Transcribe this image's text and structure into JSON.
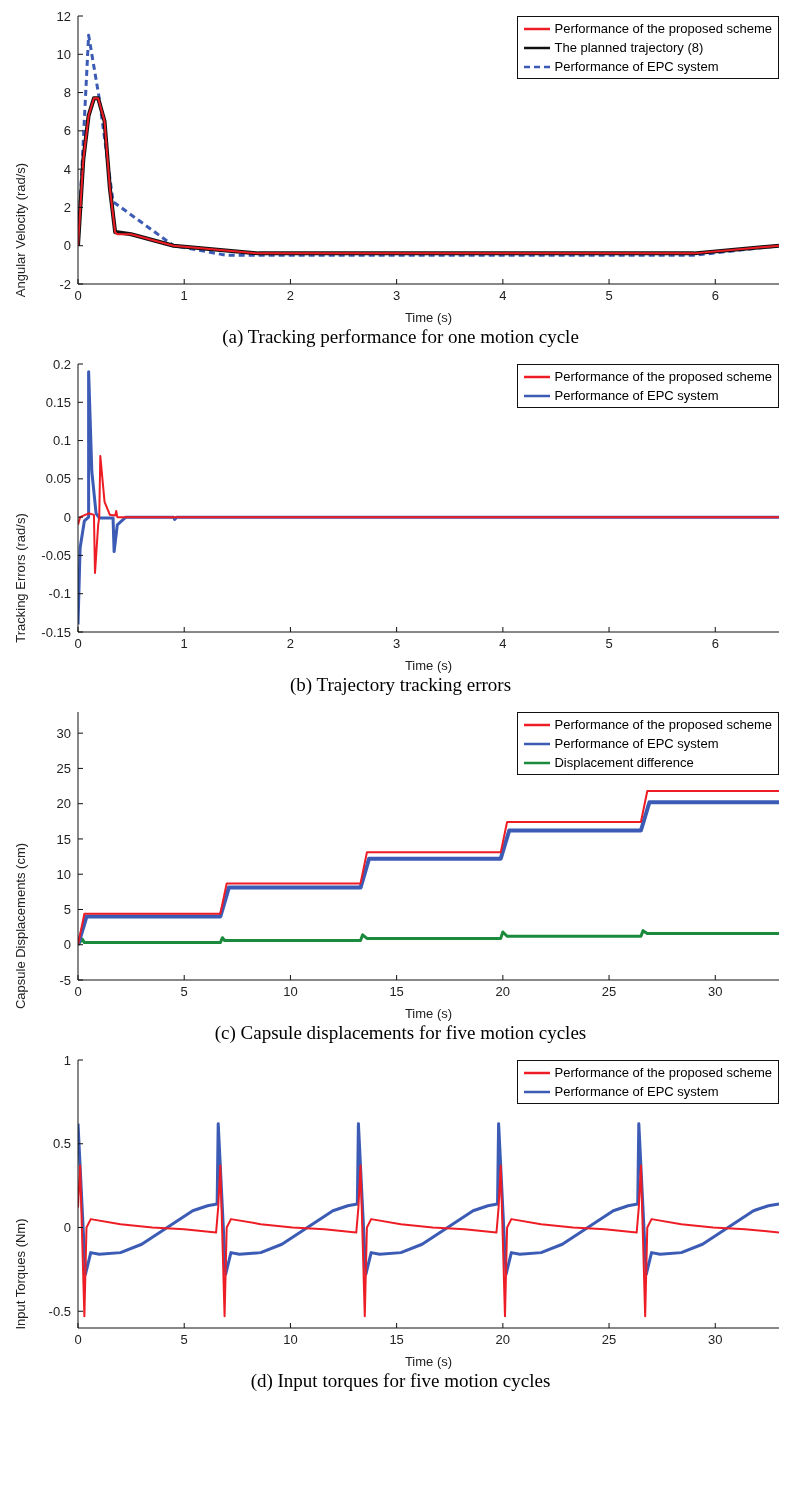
{
  "chart_data": [
    {
      "type": "line",
      "title": "(a) Tracking performance for one motion cycle",
      "xlabel": "Time (s)",
      "ylabel": "Angular Velocity (rad/s)",
      "xlim": [
        0,
        6.6
      ],
      "xticks": [
        0,
        1,
        2,
        3,
        4,
        5,
        6
      ],
      "ylim": [
        -2,
        12
      ],
      "yticks": [
        -2,
        0,
        2,
        4,
        6,
        8,
        10,
        12
      ],
      "grid": false,
      "legend": "top right",
      "series": [
        {
          "name": "Performance of the proposed scheme",
          "color": "#ee1c25",
          "line_style": "solid",
          "x": [
            0,
            0.05,
            0.1,
            0.15,
            0.19,
            0.25,
            0.3,
            0.35,
            0.37,
            0.5,
            0.9,
            1.7,
            5.8,
            6.6
          ],
          "values": [
            0,
            4.5,
            6.8,
            7.7,
            7.7,
            6.5,
            3,
            0.7,
            0.6,
            0.6,
            0,
            -0.4,
            -0.4,
            0
          ]
        },
        {
          "name": "The planned trajectory (8)",
          "color": "#111111",
          "line_style": "solid",
          "x": [
            0,
            0.05,
            0.1,
            0.15,
            0.19,
            0.25,
            0.3,
            0.35,
            0.37,
            0.5,
            0.9,
            1.7,
            5.8,
            6.6
          ],
          "values": [
            0,
            4.5,
            6.8,
            7.7,
            7.7,
            6.5,
            3,
            0.7,
            0.7,
            0.6,
            0,
            -0.4,
            -0.4,
            0
          ]
        },
        {
          "name": "Performance of EPC system",
          "color": "#3b5bb5",
          "line_style": "dashed",
          "x": [
            0,
            0.1,
            0.2,
            0.33,
            0.9,
            1.4,
            5.8,
            6.6
          ],
          "values": [
            0,
            11,
            7.7,
            2.3,
            0,
            -0.5,
            -0.5,
            0
          ]
        }
      ]
    },
    {
      "type": "line",
      "title": "(b) Trajectory tracking errors",
      "xlabel": "Time (s)",
      "ylabel": "Tracking Errors (rad/s)",
      "xlim": [
        0,
        6.6
      ],
      "xticks": [
        0,
        1,
        2,
        3,
        4,
        5,
        6
      ],
      "ylim": [
        -0.15,
        0.2
      ],
      "yticks": [
        -0.15,
        -0.1,
        -0.05,
        0,
        0.05,
        0.1,
        0.15,
        0.2
      ],
      "grid": false,
      "legend": "top right",
      "series": [
        {
          "name": "Performance of the proposed scheme",
          "color": "#ee1c25",
          "x": [
            0,
            0.02,
            0.1,
            0.15,
            0.16,
            0.19,
            0.2,
            0.21,
            0.25,
            0.3,
            0.35,
            0.36,
            0.37,
            6.6
          ],
          "values": [
            -0.01,
            0,
            0.005,
            0.003,
            -0.073,
            -0.01,
            0,
            0.08,
            0.02,
            0.003,
            0.002,
            0.008,
            0,
            0
          ]
        },
        {
          "name": "Performance of EPC system",
          "color": "#3b5bb5",
          "x": [
            0,
            0.02,
            0.06,
            0.1,
            0.1,
            0.13,
            0.17,
            0.2,
            0.33,
            0.34,
            0.37,
            0.45,
            0.9,
            0.91,
            0.93,
            6.6
          ],
          "values": [
            -0.14,
            -0.04,
            -0.005,
            0,
            0.19,
            0.06,
            0.005,
            -0.001,
            -0.001,
            -0.045,
            -0.01,
            0,
            0,
            -0.003,
            0,
            0
          ]
        }
      ]
    },
    {
      "type": "line",
      "title": "(c) Capsule displacements for five motion cycles",
      "xlabel": "Time (s)",
      "ylabel": "Capsule Displacements (cm)",
      "xlim": [
        0,
        33
      ],
      "xticks": [
        0,
        5,
        10,
        15,
        20,
        25,
        30
      ],
      "ylim": [
        -5,
        33
      ],
      "yticks": [
        -5,
        0,
        5,
        10,
        15,
        20,
        25,
        30
      ],
      "grid": false,
      "legend": "top right",
      "series": [
        {
          "name": "Performance of the proposed scheme",
          "color": "#ee1c25",
          "x": [
            0,
            0.3,
            6.7,
            7,
            13.3,
            13.6,
            19.9,
            20.2,
            26.5,
            26.8,
            33
          ],
          "values": [
            0,
            4.4,
            4.4,
            8.7,
            8.7,
            13.1,
            13.1,
            17.4,
            17.4,
            21.8,
            21.8
          ]
        },
        {
          "name": "Performance of EPC system",
          "color": "#3b5bb5",
          "x": [
            0,
            0.4,
            6.7,
            7.1,
            13.3,
            13.7,
            19.9,
            20.3,
            26.5,
            26.9,
            33
          ],
          "values": [
            0,
            4,
            4,
            8.1,
            8.1,
            12.2,
            12.2,
            16.2,
            16.2,
            20.2,
            20.2
          ]
        },
        {
          "name": "Displacement difference",
          "color": "#1a8a3c",
          "x": [
            0,
            0.2,
            0.3,
            0.5,
            6.7,
            6.8,
            6.9,
            13.3,
            13.4,
            13.6,
            19.9,
            20,
            20.2,
            26.5,
            26.6,
            26.8,
            33
          ],
          "values": [
            0,
            0.8,
            0.3,
            0.3,
            0.3,
            1,
            0.6,
            0.6,
            1.4,
            0.9,
            0.9,
            1.8,
            1.2,
            1.2,
            2,
            1.6,
            1.6
          ]
        }
      ]
    },
    {
      "type": "line",
      "title": "(d) Input torques for five motion cycles",
      "xlabel": "Time (s)",
      "ylabel": "Input Torques (Nm)",
      "xlim": [
        0,
        33
      ],
      "xticks": [
        0,
        5,
        10,
        15,
        20,
        25,
        30
      ],
      "ylim": [
        -0.6,
        1
      ],
      "yticks": [
        -0.5,
        0,
        0.5,
        1
      ],
      "grid": false,
      "legend": "top right",
      "series": [
        {
          "name": "Performance of the proposed scheme",
          "color": "#ee1c25",
          "x": [
            0,
            0.1,
            0.3,
            0.4,
            0.6,
            2,
            3.5,
            5,
            6.5,
            6.6,
            6.7,
            6.9,
            7,
            7.2,
            8.6,
            10.1,
            11.6,
            13.1,
            13.2,
            13.3,
            13.5,
            13.6,
            13.8,
            15.2,
            16.7,
            18.2,
            19.7,
            19.8,
            19.9,
            20.1,
            20.2,
            20.4,
            21.8,
            23.3,
            24.8,
            26.3,
            26.4,
            26.5,
            26.7,
            26.8,
            27,
            28.4,
            29.9,
            31.4,
            33
          ],
          "values": [
            0.12,
            0.37,
            -0.53,
            0,
            0.05,
            0.02,
            0,
            -0.01,
            -0.03,
            0.12,
            0.37,
            -0.53,
            0,
            0.05,
            0.02,
            0,
            -0.01,
            -0.03,
            0.12,
            0.37,
            -0.53,
            0,
            0.05,
            0.02,
            0,
            -0.01,
            -0.03,
            0.12,
            0.37,
            -0.53,
            0,
            0.05,
            0.02,
            0,
            -0.01,
            -0.03,
            0.12,
            0.37,
            -0.53,
            0,
            0.05,
            0.02,
            0,
            -0.01,
            -0.03
          ]
        },
        {
          "name": "Performance of EPC system",
          "color": "#3b5bb5",
          "x": [
            0,
            0.35,
            0.6,
            1,
            2,
            3,
            4.2,
            5.4,
            6.1,
            6.55,
            6.6,
            6.95,
            7.2,
            7.6,
            8.6,
            9.6,
            10.8,
            12,
            12.7,
            13.15,
            13.2,
            13.55,
            13.8,
            14.2,
            15.2,
            16.2,
            17.4,
            18.6,
            19.3,
            19.75,
            19.8,
            20.15,
            20.4,
            20.8,
            21.8,
            22.8,
            24,
            25.2,
            25.9,
            26.35,
            26.4,
            26.75,
            27,
            27.4,
            28.4,
            29.4,
            30.6,
            31.8,
            32.5,
            33
          ],
          "values": [
            0.62,
            -0.28,
            -0.15,
            -0.16,
            -0.15,
            -0.1,
            0,
            0.1,
            0.13,
            0.14,
            0.62,
            -0.28,
            -0.15,
            -0.16,
            -0.15,
            -0.1,
            0,
            0.1,
            0.13,
            0.14,
            0.62,
            -0.28,
            -0.15,
            -0.16,
            -0.15,
            -0.1,
            0,
            0.1,
            0.13,
            0.14,
            0.62,
            -0.28,
            -0.15,
            -0.16,
            -0.15,
            -0.1,
            0,
            0.1,
            0.13,
            0.14,
            0.62,
            -0.28,
            -0.15,
            -0.16,
            -0.15,
            -0.1,
            0,
            0.1,
            0.13,
            0.14
          ]
        }
      ]
    }
  ]
}
